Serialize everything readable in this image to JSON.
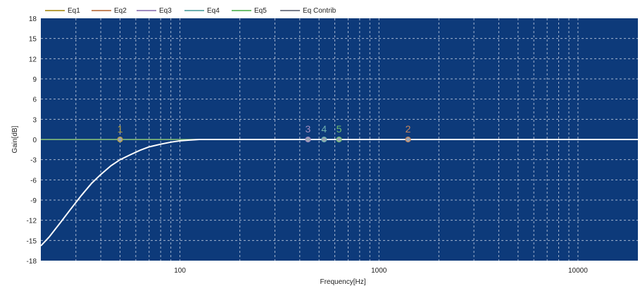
{
  "chart_data": {
    "type": "line",
    "xlabel": "Frequency[Hz]",
    "ylabel": "Gain[dB]",
    "x_scale": "log",
    "xlim": [
      20,
      20000
    ],
    "ylim": [
      -18,
      18
    ],
    "y_ticks": [
      18,
      15,
      12,
      9,
      6,
      3,
      0,
      -3,
      -6,
      -9,
      -12,
      -15,
      -18
    ],
    "x_tick_labels": [
      "100",
      "1000",
      "10000"
    ],
    "x_ticks": [
      100,
      1000,
      10000
    ],
    "grid": true,
    "legend_position": "top",
    "colors": {
      "plot_bg": "#0d3a7a",
      "grid": "#c9d3e3",
      "contrib": "#ffffff"
    },
    "series": [
      {
        "name": "Eq1",
        "color": "#b8a040",
        "x": [
          20,
          20000
        ],
        "y": [
          0,
          0
        ]
      },
      {
        "name": "Eq2",
        "color": "#c4865e",
        "x": [
          20,
          20000
        ],
        "y": [
          0,
          0
        ]
      },
      {
        "name": "Eq3",
        "color": "#a08cc0",
        "x": [
          20,
          20000
        ],
        "y": [
          0,
          0
        ]
      },
      {
        "name": "Eq4",
        "color": "#6eb0b0",
        "x": [
          20,
          20000
        ],
        "y": [
          0,
          0
        ]
      },
      {
        "name": "Eq5",
        "color": "#6fbf6f",
        "x": [
          20,
          20000
        ],
        "y": [
          0,
          0
        ]
      },
      {
        "name": "Eq Contrib",
        "color": "#ffffff",
        "x": [
          20,
          22,
          25,
          28,
          32,
          36,
          40,
          45,
          50,
          56,
          63,
          70,
          80,
          90,
          100,
          110,
          125,
          20000
        ],
        "y": [
          -15.8,
          -14.5,
          -12.4,
          -10.5,
          -8.3,
          -6.5,
          -5.2,
          -3.9,
          -3.0,
          -2.3,
          -1.6,
          -1.1,
          -0.7,
          -0.4,
          -0.2,
          -0.1,
          0,
          0
        ]
      }
    ],
    "markers": [
      {
        "label": "1",
        "x": 50,
        "y": 0,
        "color": "#b8a040"
      },
      {
        "label": "3",
        "x": 440,
        "y": 0,
        "color": "#a08cc0"
      },
      {
        "label": "4",
        "x": 530,
        "y": 0,
        "color": "#6eb0b0"
      },
      {
        "label": "5",
        "x": 630,
        "y": 0,
        "color": "#6fbf6f"
      },
      {
        "label": "2",
        "x": 1400,
        "y": 0,
        "color": "#c4865e"
      }
    ]
  }
}
